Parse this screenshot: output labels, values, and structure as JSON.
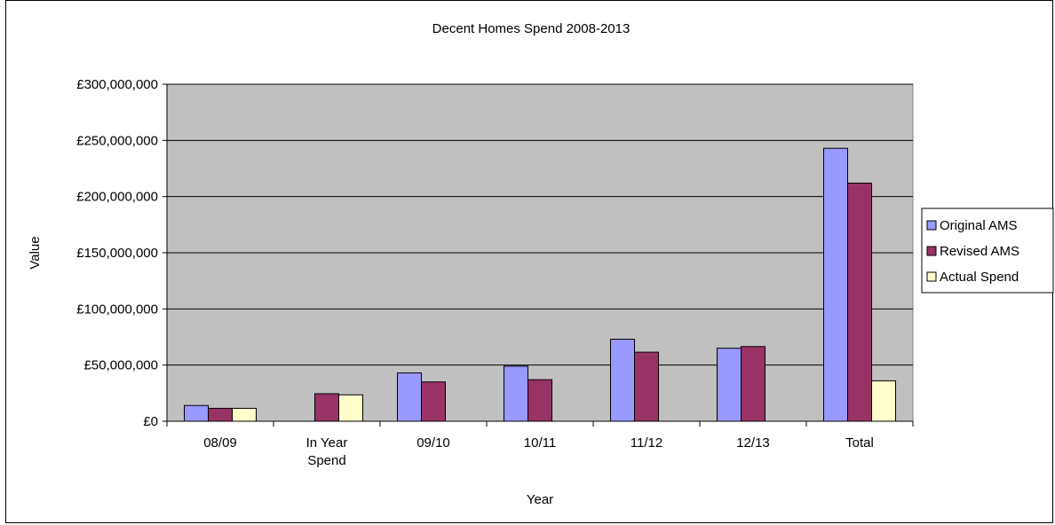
{
  "chart_data": {
    "type": "bar",
    "title": "Decent Homes Spend 2008-2013",
    "xlabel": "Year",
    "ylabel": "Value",
    "categories": [
      [
        "08/09"
      ],
      [
        "In Year",
        "Spend"
      ],
      [
        "09/10"
      ],
      [
        "10/11"
      ],
      [
        "11/12"
      ],
      [
        "12/13"
      ],
      [
        "Total"
      ]
    ],
    "series": [
      {
        "name": "Original AMS",
        "color": "#9999ff",
        "values": [
          14000000,
          null,
          43000000,
          49000000,
          73000000,
          65000000,
          243000000
        ]
      },
      {
        "name": "Revised AMS",
        "color": "#993366",
        "values": [
          11500000,
          24500000,
          35000000,
          37000000,
          61500000,
          66500000,
          212000000
        ]
      },
      {
        "name": "Actual Spend",
        "color": "#ffffcc",
        "values": [
          11500000,
          23500000,
          null,
          null,
          null,
          null,
          36000000
        ]
      }
    ],
    "ylim": [
      0,
      300000000
    ],
    "yticks": [
      {
        "value": 0,
        "label": "£0"
      },
      {
        "value": 50000000,
        "label": "£50,000,000"
      },
      {
        "value": 100000000,
        "label": "£100,000,000"
      },
      {
        "value": 150000000,
        "label": "£150,000,000"
      },
      {
        "value": 200000000,
        "label": "£200,000,000"
      },
      {
        "value": 250000000,
        "label": "£250,000,000"
      },
      {
        "value": 300000000,
        "label": "£300,000,000"
      }
    ],
    "plot_background": "#c0c0c0",
    "grid": true,
    "legend_position": "right"
  }
}
